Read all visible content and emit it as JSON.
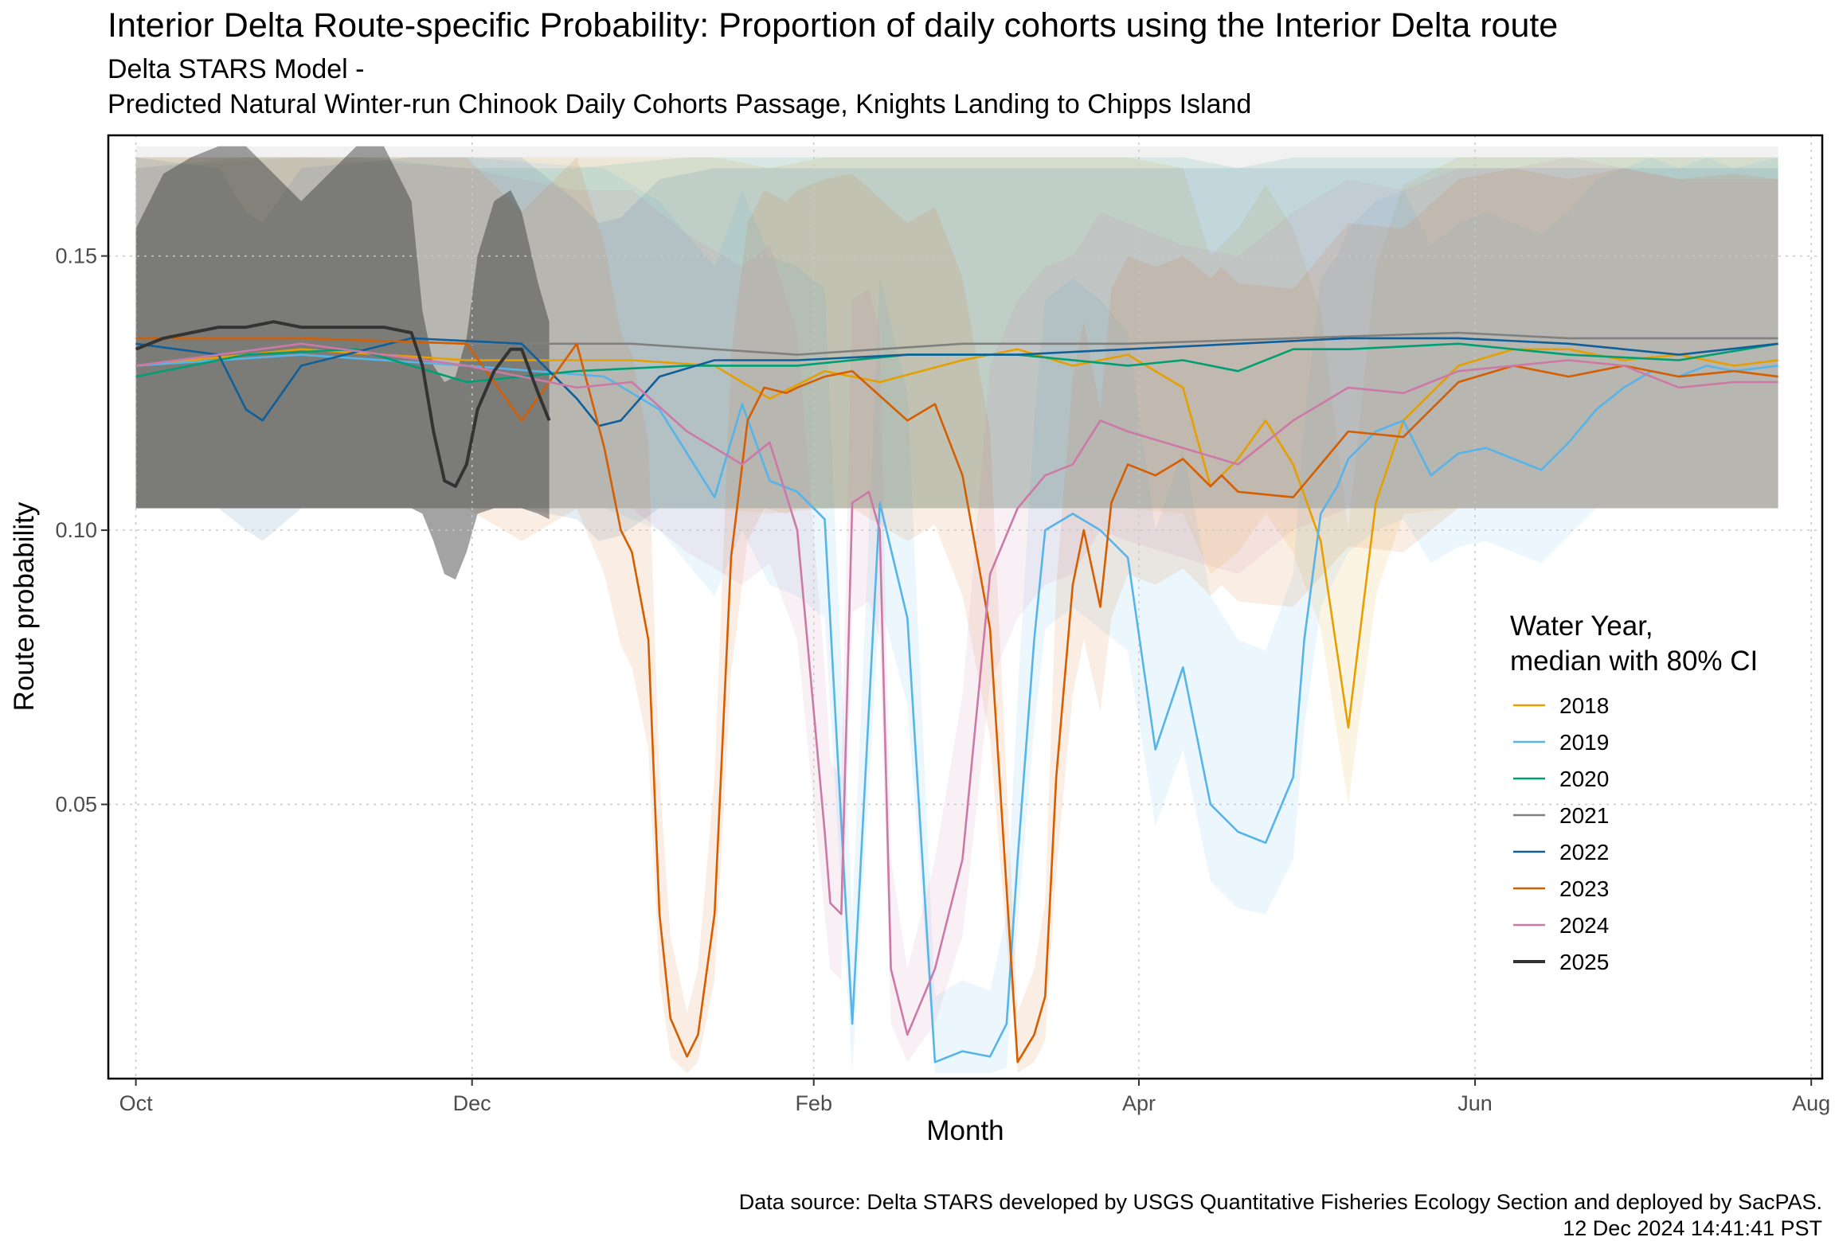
{
  "chart_data": {
    "type": "line",
    "title": "Interior Delta Route-specific Probability: Proportion of daily cohorts using the Interior Delta route",
    "subtitle": [
      "Delta STARS Model -",
      "Predicted Natural Winter-run Chinook Daily Cohorts Passage, Knights Landing to Chipps Island"
    ],
    "xlabel": "Month",
    "ylabel": "Route probability",
    "x_ticks": [
      "Oct",
      "Dec",
      "Feb",
      "Apr",
      "Jun",
      "Aug"
    ],
    "y_ticks": [
      0.05,
      0.1,
      0.15
    ],
    "ylim": [
      0.0,
      0.172
    ],
    "xlim_days": [
      -5,
      306
    ],
    "grid": true,
    "legend": {
      "title": [
        "Water Year,",
        "median with 80% CI"
      ],
      "placement": "right"
    },
    "caption": [
      "Data source: Delta STARS developed by USGS Quantitative Fisheries Ecology Section and deployed by SacPAS.",
      "12 Dec 2024 14:41:41 PST"
    ],
    "series": [
      {
        "name": "2018",
        "color": "#E69F00",
        "x": [
          0,
          30,
          60,
          90,
          105,
          115,
          125,
          135,
          150,
          160,
          170,
          180,
          190,
          195,
          200,
          205,
          210,
          215,
          220,
          225,
          230,
          240,
          250,
          260,
          270,
          280,
          290,
          298
        ],
        "y": [
          0.13,
          0.133,
          0.131,
          0.131,
          0.13,
          0.124,
          0.129,
          0.127,
          0.131,
          0.133,
          0.13,
          0.132,
          0.126,
          0.108,
          0.113,
          0.12,
          0.112,
          0.098,
          0.064,
          0.105,
          0.12,
          0.13,
          0.133,
          0.133,
          0.131,
          0.132,
          0.13,
          0.131
        ],
        "lower": [
          0.104,
          0.104,
          0.104,
          0.104,
          0.104,
          0.103,
          0.104,
          0.104,
          0.104,
          0.104,
          0.104,
          0.104,
          0.103,
          0.092,
          0.096,
          0.103,
          0.096,
          0.082,
          0.05,
          0.088,
          0.103,
          0.104,
          0.104,
          0.104,
          0.104,
          0.104,
          0.104,
          0.104
        ],
        "upper": [
          0.168,
          0.168,
          0.168,
          0.168,
          0.168,
          0.166,
          0.168,
          0.168,
          0.168,
          0.168,
          0.168,
          0.168,
          0.166,
          0.15,
          0.155,
          0.163,
          0.155,
          0.14,
          0.1,
          0.148,
          0.163,
          0.168,
          0.168,
          0.168,
          0.168,
          0.168,
          0.168,
          0.168
        ]
      },
      {
        "name": "2019",
        "color": "#56B4E9",
        "x": [
          0,
          30,
          60,
          85,
          95,
          105,
          110,
          115,
          120,
          125,
          130,
          135,
          140,
          145,
          150,
          155,
          158,
          160,
          163,
          165,
          170,
          175,
          180,
          185,
          190,
          195,
          200,
          205,
          210,
          212,
          215,
          218,
          220,
          225,
          230,
          235,
          240,
          245,
          250,
          255,
          260,
          265,
          270,
          275,
          280,
          285,
          290,
          298
        ],
        "y": [
          0.13,
          0.132,
          0.13,
          0.128,
          0.122,
          0.106,
          0.123,
          0.109,
          0.107,
          0.102,
          0.01,
          0.105,
          0.084,
          0.003,
          0.005,
          0.004,
          0.01,
          0.04,
          0.08,
          0.1,
          0.103,
          0.1,
          0.095,
          0.06,
          0.075,
          0.05,
          0.045,
          0.043,
          0.055,
          0.08,
          0.103,
          0.108,
          0.113,
          0.118,
          0.12,
          0.11,
          0.114,
          0.115,
          0.113,
          0.111,
          0.116,
          0.122,
          0.126,
          0.129,
          0.128,
          0.13,
          0.129,
          0.13
        ],
        "lower": [
          0.104,
          0.104,
          0.104,
          0.104,
          0.1,
          0.088,
          0.1,
          0.09,
          0.088,
          0.084,
          0.001,
          0.087,
          0.068,
          0.001,
          0.001,
          0.001,
          0.002,
          0.028,
          0.064,
          0.082,
          0.086,
          0.082,
          0.078,
          0.046,
          0.06,
          0.036,
          0.031,
          0.03,
          0.04,
          0.064,
          0.086,
          0.092,
          0.096,
          0.1,
          0.102,
          0.094,
          0.097,
          0.098,
          0.096,
          0.094,
          0.099,
          0.104,
          0.104,
          0.104,
          0.104,
          0.104,
          0.104,
          0.104
        ],
        "upper": [
          0.168,
          0.168,
          0.168,
          0.166,
          0.16,
          0.148,
          0.162,
          0.15,
          0.148,
          0.144,
          0.03,
          0.146,
          0.125,
          0.015,
          0.018,
          0.016,
          0.03,
          0.07,
          0.12,
          0.142,
          0.146,
          0.142,
          0.136,
          0.1,
          0.115,
          0.088,
          0.08,
          0.078,
          0.092,
          0.12,
          0.146,
          0.15,
          0.155,
          0.16,
          0.162,
          0.152,
          0.156,
          0.158,
          0.156,
          0.154,
          0.158,
          0.164,
          0.166,
          0.168,
          0.166,
          0.168,
          0.166,
          0.168
        ]
      },
      {
        "name": "2020",
        "color": "#009E73",
        "x": [
          0,
          20,
          40,
          60,
          80,
          100,
          120,
          140,
          160,
          180,
          190,
          200,
          210,
          220,
          240,
          260,
          280,
          298
        ],
        "y": [
          0.128,
          0.132,
          0.133,
          0.127,
          0.129,
          0.13,
          0.13,
          0.132,
          0.132,
          0.13,
          0.131,
          0.129,
          0.133,
          0.133,
          0.134,
          0.132,
          0.131,
          0.134
        ],
        "lower": [
          0.104,
          0.104,
          0.104,
          0.104,
          0.104,
          0.104,
          0.104,
          0.104,
          0.104,
          0.104,
          0.104,
          0.104,
          0.104,
          0.104,
          0.104,
          0.104,
          0.104,
          0.104
        ],
        "upper": [
          0.166,
          0.168,
          0.168,
          0.166,
          0.166,
          0.168,
          0.168,
          0.168,
          0.168,
          0.168,
          0.168,
          0.166,
          0.168,
          0.168,
          0.168,
          0.168,
          0.168,
          0.168
        ]
      },
      {
        "name": "2021",
        "color": "#808080",
        "x": [
          0,
          30,
          60,
          90,
          120,
          150,
          180,
          210,
          240,
          260,
          280,
          298
        ],
        "y": [
          0.135,
          0.135,
          0.134,
          0.134,
          0.132,
          0.134,
          0.134,
          0.135,
          0.136,
          0.135,
          0.135,
          0.135
        ],
        "lower": [
          0.104,
          0.104,
          0.104,
          0.104,
          0.104,
          0.104,
          0.104,
          0.104,
          0.104,
          0.104,
          0.104,
          0.104
        ],
        "upper": [
          0.17,
          0.17,
          0.17,
          0.17,
          0.17,
          0.17,
          0.17,
          0.17,
          0.17,
          0.17,
          0.17,
          0.17
        ]
      },
      {
        "name": "2022",
        "color": "#0F5F9A",
        "x": [
          0,
          15,
          20,
          23,
          30,
          50,
          70,
          80,
          84,
          88,
          95,
          105,
          120,
          140,
          160,
          180,
          200,
          220,
          240,
          260,
          280,
          298
        ],
        "y": [
          0.134,
          0.132,
          0.122,
          0.12,
          0.13,
          0.135,
          0.134,
          0.124,
          0.119,
          0.12,
          0.128,
          0.131,
          0.131,
          0.132,
          0.132,
          0.133,
          0.134,
          0.135,
          0.135,
          0.134,
          0.132,
          0.134
        ],
        "lower": [
          0.104,
          0.104,
          0.1,
          0.098,
          0.104,
          0.104,
          0.104,
          0.102,
          0.098,
          0.099,
          0.104,
          0.104,
          0.104,
          0.104,
          0.104,
          0.104,
          0.104,
          0.104,
          0.104,
          0.104,
          0.104,
          0.104
        ],
        "upper": [
          0.168,
          0.166,
          0.158,
          0.156,
          0.166,
          0.168,
          0.168,
          0.16,
          0.156,
          0.157,
          0.164,
          0.166,
          0.166,
          0.166,
          0.166,
          0.166,
          0.166,
          0.166,
          0.166,
          0.166,
          0.166,
          0.166
        ]
      },
      {
        "name": "2023",
        "color": "#D55E00",
        "x": [
          0,
          30,
          60,
          70,
          80,
          85,
          88,
          90,
          93,
          95,
          97,
          100,
          102,
          105,
          108,
          111,
          114,
          118,
          120,
          125,
          130,
          140,
          145,
          150,
          155,
          160,
          163,
          165,
          167,
          170,
          172,
          175,
          177,
          180,
          185,
          190,
          195,
          197,
          200,
          210,
          220,
          230,
          240,
          250,
          260,
          270,
          280,
          290,
          298
        ],
        "y": [
          0.135,
          0.135,
          0.134,
          0.12,
          0.134,
          0.115,
          0.1,
          0.096,
          0.08,
          0.03,
          0.011,
          0.004,
          0.008,
          0.03,
          0.095,
          0.12,
          0.126,
          0.125,
          0.126,
          0.128,
          0.129,
          0.12,
          0.123,
          0.11,
          0.082,
          0.003,
          0.008,
          0.015,
          0.055,
          0.09,
          0.1,
          0.086,
          0.105,
          0.112,
          0.11,
          0.113,
          0.108,
          0.11,
          0.107,
          0.106,
          0.118,
          0.117,
          0.127,
          0.13,
          0.128,
          0.13,
          0.128,
          0.129,
          0.128
        ],
        "lower": [
          0.104,
          0.104,
          0.104,
          0.098,
          0.104,
          0.092,
          0.079,
          0.075,
          0.06,
          0.018,
          0.004,
          0.001,
          0.003,
          0.018,
          0.074,
          0.098,
          0.104,
          0.103,
          0.104,
          0.104,
          0.104,
          0.098,
          0.101,
          0.088,
          0.062,
          0.001,
          0.003,
          0.007,
          0.038,
          0.07,
          0.08,
          0.067,
          0.084,
          0.092,
          0.09,
          0.093,
          0.088,
          0.09,
          0.087,
          0.086,
          0.097,
          0.096,
          0.104,
          0.104,
          0.104,
          0.104,
          0.104,
          0.104,
          0.104
        ],
        "upper": [
          0.168,
          0.168,
          0.168,
          0.158,
          0.168,
          0.152,
          0.136,
          0.132,
          0.116,
          0.055,
          0.026,
          0.012,
          0.02,
          0.055,
          0.132,
          0.156,
          0.162,
          0.16,
          0.162,
          0.164,
          0.165,
          0.156,
          0.159,
          0.146,
          0.118,
          0.012,
          0.02,
          0.032,
          0.09,
          0.128,
          0.138,
          0.122,
          0.144,
          0.15,
          0.148,
          0.15,
          0.146,
          0.148,
          0.145,
          0.144,
          0.156,
          0.155,
          0.164,
          0.166,
          0.164,
          0.166,
          0.164,
          0.165,
          0.164
        ]
      },
      {
        "name": "2024",
        "color": "#CC79A7",
        "x": [
          0,
          30,
          60,
          80,
          90,
          100,
          110,
          115,
          120,
          125,
          126,
          128,
          130,
          133,
          135,
          137,
          140,
          145,
          150,
          155,
          160,
          165,
          170,
          175,
          180,
          190,
          200,
          210,
          220,
          230,
          240,
          250,
          260,
          270,
          280,
          290,
          298
        ],
        "y": [
          0.13,
          0.134,
          0.13,
          0.126,
          0.127,
          0.118,
          0.112,
          0.116,
          0.1,
          0.045,
          0.032,
          0.03,
          0.105,
          0.107,
          0.1,
          0.02,
          0.008,
          0.02,
          0.04,
          0.092,
          0.104,
          0.11,
          0.112,
          0.12,
          0.118,
          0.115,
          0.112,
          0.12,
          0.126,
          0.125,
          0.129,
          0.13,
          0.131,
          0.13,
          0.126,
          0.127,
          0.127
        ],
        "lower": [
          0.104,
          0.104,
          0.104,
          0.104,
          0.104,
          0.096,
          0.09,
          0.094,
          0.08,
          0.03,
          0.02,
          0.018,
          0.085,
          0.087,
          0.08,
          0.01,
          0.003,
          0.01,
          0.026,
          0.072,
          0.084,
          0.09,
          0.092,
          0.1,
          0.098,
          0.095,
          0.092,
          0.1,
          0.104,
          0.104,
          0.104,
          0.104,
          0.104,
          0.104,
          0.104,
          0.104,
          0.104
        ],
        "upper": [
          0.166,
          0.168,
          0.166,
          0.162,
          0.162,
          0.154,
          0.148,
          0.152,
          0.136,
          0.075,
          0.058,
          0.055,
          0.142,
          0.144,
          0.136,
          0.04,
          0.02,
          0.04,
          0.07,
          0.13,
          0.142,
          0.148,
          0.15,
          0.158,
          0.156,
          0.152,
          0.15,
          0.158,
          0.164,
          0.162,
          0.166,
          0.166,
          0.168,
          0.166,
          0.164,
          0.164,
          0.164
        ]
      },
      {
        "name": "2025",
        "color": "#333333",
        "x": [
          0,
          5,
          10,
          15,
          20,
          25,
          30,
          35,
          40,
          45,
          50,
          52,
          54,
          56,
          58,
          60,
          62,
          65,
          68,
          70,
          73,
          75
        ],
        "y": [
          0.133,
          0.135,
          0.136,
          0.137,
          0.137,
          0.138,
          0.137,
          0.137,
          0.137,
          0.137,
          0.136,
          0.13,
          0.118,
          0.109,
          0.108,
          0.112,
          0.122,
          0.129,
          0.133,
          0.133,
          0.125,
          0.12
        ],
        "lower": [
          0.104,
          0.104,
          0.104,
          0.104,
          0.104,
          0.104,
          0.104,
          0.104,
          0.104,
          0.104,
          0.104,
          0.103,
          0.098,
          0.092,
          0.091,
          0.096,
          0.103,
          0.104,
          0.104,
          0.104,
          0.103,
          0.102
        ],
        "upper": [
          0.155,
          0.165,
          0.168,
          0.17,
          0.17,
          0.165,
          0.16,
          0.165,
          0.17,
          0.17,
          0.16,
          0.14,
          0.13,
          0.127,
          0.128,
          0.135,
          0.15,
          0.16,
          0.162,
          0.158,
          0.145,
          0.138
        ]
      }
    ]
  }
}
